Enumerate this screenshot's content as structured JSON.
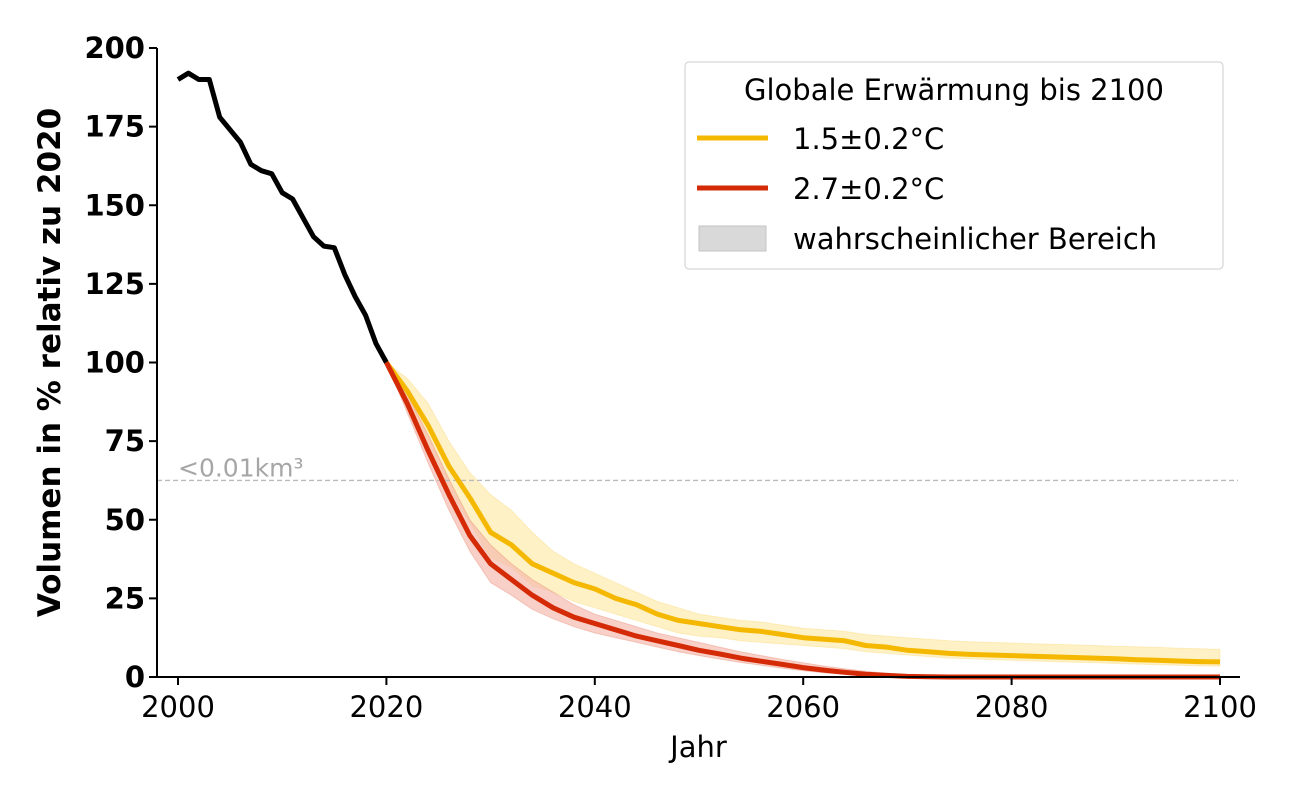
{
  "chart_data": {
    "type": "line",
    "xlabel": "Jahr",
    "ylabel": "Volumen in % relativ zu 2020",
    "xlim": [
      1998,
      2102
    ],
    "ylim": [
      0,
      200
    ],
    "x_ticks": [
      "2000",
      "2020",
      "2040",
      "2060",
      "2080",
      "2100"
    ],
    "y_ticks": [
      "0",
      "25",
      "50",
      "75",
      "100",
      "125",
      "150",
      "175",
      "200"
    ],
    "grid": false,
    "legend": {
      "title": "Globale Erwärmung bis 2100",
      "position": "top-right",
      "entries": [
        "1.5±0.2°C",
        "2.7±0.2°C",
        "wahrscheinlicher Bereich"
      ]
    },
    "threshold": {
      "y": 62.5,
      "label": "<0.01km³",
      "color": "#bbbbbb"
    },
    "series": [
      {
        "color": "#000000",
        "x": [
          2000,
          2001,
          2002,
          2003,
          2004,
          2005,
          2006,
          2007,
          2008,
          2009,
          2010,
          2011,
          2012,
          2013,
          2014,
          2015,
          2016,
          2017,
          2018,
          2019,
          2020
        ],
        "y": [
          190,
          192,
          190,
          190,
          178,
          174,
          170,
          163,
          161,
          160,
          154,
          152,
          146,
          140,
          137,
          136.5,
          128,
          121,
          115,
          106,
          100
        ]
      },
      {
        "name": "1.5±0.2°C",
        "color": "#f5b800",
        "band_color": "#fde9a8",
        "x": [
          2020,
          2022,
          2024,
          2026,
          2028,
          2030,
          2032,
          2034,
          2036,
          2038,
          2040,
          2042,
          2044,
          2046,
          2048,
          2050,
          2052,
          2054,
          2056,
          2058,
          2060,
          2062,
          2064,
          2066,
          2068,
          2070,
          2072,
          2074,
          2076,
          2078,
          2080,
          2082,
          2084,
          2086,
          2088,
          2090,
          2092,
          2094,
          2096,
          2098,
          2100
        ],
        "y": [
          100,
          91,
          80,
          67,
          57,
          46,
          42,
          36,
          33,
          30,
          28,
          25,
          23,
          20,
          18,
          17,
          16,
          15,
          14.5,
          13.5,
          12.5,
          12,
          11.5,
          10,
          9.5,
          8.5,
          8,
          7.5,
          7.2,
          7,
          6.8,
          6.6,
          6.4,
          6.2,
          6,
          5.8,
          5.5,
          5.3,
          5.1,
          4.9,
          4.8
        ],
        "lower": [
          100,
          88,
          73,
          60,
          49,
          38,
          35,
          29,
          27,
          24,
          22,
          20,
          18,
          16,
          14,
          13,
          12.5,
          11.5,
          11,
          10.5,
          10,
          9.5,
          9,
          8,
          7.5,
          7,
          6.5,
          6,
          5.8,
          5.5,
          5.3,
          5.1,
          4.9,
          4.7,
          4.5,
          4.3,
          4.1,
          3.9,
          3.7,
          3.5,
          3.4
        ],
        "upper": [
          100,
          95,
          87,
          75,
          65,
          58,
          53,
          46,
          40,
          36,
          33,
          30,
          27,
          24,
          22,
          20,
          19,
          18,
          17.5,
          16.5,
          15.5,
          15,
          14.5,
          13.5,
          13,
          12.5,
          12,
          11.5,
          11.2,
          11,
          10.8,
          10.6,
          10.4,
          10.2,
          10,
          9.8,
          9.6,
          9.4,
          9.2,
          9,
          8.8
        ]
      },
      {
        "name": "2.7±0.2°C",
        "color": "#d42a06",
        "band_color": "#f4b7aa",
        "x": [
          2020,
          2022,
          2024,
          2026,
          2028,
          2030,
          2032,
          2034,
          2036,
          2038,
          2040,
          2042,
          2044,
          2046,
          2048,
          2050,
          2052,
          2054,
          2056,
          2058,
          2060,
          2062,
          2064,
          2066,
          2068,
          2070,
          2072,
          2074,
          2076,
          2078,
          2080,
          2082,
          2084,
          2086,
          2088,
          2090,
          2092,
          2094,
          2096,
          2098,
          2100
        ],
        "y": [
          100,
          87,
          72,
          58,
          45,
          36,
          31,
          26,
          22,
          19,
          17,
          15,
          13,
          11.5,
          10,
          8.5,
          7.3,
          6,
          5,
          4,
          3,
          2.2,
          1.5,
          0.9,
          0.5,
          0.2,
          0.1,
          0,
          0,
          0,
          0,
          0,
          0,
          0,
          0,
          0,
          0,
          0,
          0,
          0,
          0
        ],
        "lower": [
          100,
          84,
          68,
          53,
          40,
          30,
          26,
          21.5,
          18.5,
          16,
          14,
          12.5,
          11,
          9.5,
          8,
          6.8,
          5.7,
          4.6,
          3.7,
          2.8,
          2,
          1.3,
          0.8,
          0.4,
          0.1,
          0,
          0,
          0,
          0,
          0,
          0,
          0,
          0,
          0,
          0,
          0,
          0,
          0,
          0,
          0,
          0
        ],
        "upper": [
          100,
          90,
          77,
          63,
          50,
          42,
          36,
          31,
          27,
          23,
          20,
          18,
          16,
          14,
          12.5,
          11,
          9.5,
          8,
          6.8,
          5.6,
          4.5,
          3.5,
          2.6,
          1.8,
          1.2,
          0.7,
          0.4,
          0.2,
          0.1,
          0,
          0,
          0,
          0,
          0,
          0,
          0,
          0,
          0,
          0,
          0,
          0
        ]
      }
    ]
  }
}
